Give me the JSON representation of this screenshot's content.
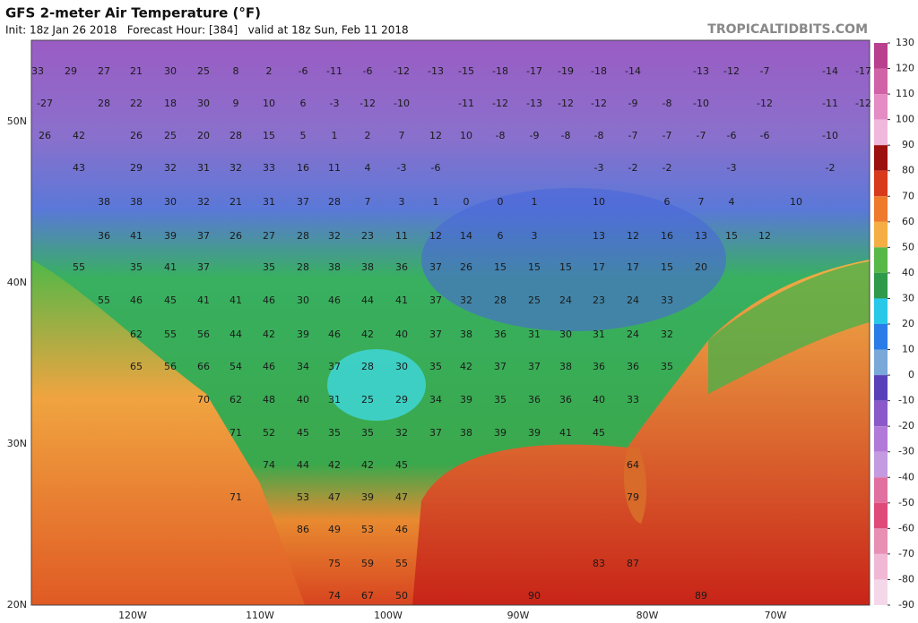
{
  "header": {
    "title": "GFS 2-meter Air Temperature (°F)",
    "subtitle": "Init: 18z Jan 26 2018   Forecast Hour: [384]   valid at 18z Sun, Feb 11 2018",
    "credit": "TROPICALTIDBITS.COM"
  },
  "map": {
    "longitude_labels": [
      "120W",
      "110W",
      "100W",
      "90W",
      "80W",
      "70W"
    ],
    "latitude_labels": [
      "50N",
      "40N",
      "30N",
      "20N"
    ],
    "station_rows": [
      [
        33,
        29,
        27,
        21,
        30,
        25,
        8,
        2,
        -6,
        -11,
        -6,
        -12,
        -13,
        -15,
        -18,
        -17,
        -19,
        -18,
        -14,
        -13,
        -12,
        -7,
        -14,
        -17
      ],
      [
        -27,
        28,
        22,
        18,
        30,
        9,
        10,
        6,
        -3,
        -12,
        -10,
        -11,
        -12,
        -13,
        -12,
        -12,
        -9,
        -8,
        -10,
        -12,
        -11,
        -12
      ],
      [
        26,
        42,
        26,
        25,
        20,
        28,
        15,
        5,
        1,
        2,
        7,
        12,
        10,
        -8,
        -9,
        -8,
        -8,
        -7,
        -7,
        -7,
        -6,
        -6,
        -10
      ],
      [
        43,
        29,
        32,
        31,
        32,
        33,
        16,
        11,
        4,
        -3,
        -6,
        -3,
        -2,
        -2,
        -3,
        -2
      ],
      [
        38,
        38,
        30,
        32,
        21,
        31,
        37,
        28,
        7,
        3,
        1,
        0,
        0,
        1,
        10,
        6,
        7,
        4,
        10
      ],
      [
        36,
        41,
        39,
        37,
        26,
        27,
        28,
        32,
        23,
        11,
        12,
        14,
        6,
        3,
        13,
        12,
        16,
        13,
        15,
        12
      ],
      [
        55,
        35,
        41,
        37,
        35,
        28,
        38,
        38,
        36,
        37,
        26,
        15,
        15,
        15,
        17,
        17,
        15,
        20
      ],
      [
        55,
        46,
        45,
        41,
        41,
        46,
        30,
        46,
        44,
        41,
        37,
        32,
        28,
        25,
        24,
        23,
        24,
        33
      ],
      [
        62,
        55,
        56,
        44,
        42,
        39,
        46,
        42,
        40,
        37,
        38,
        36,
        31,
        30,
        31,
        24,
        32
      ],
      [
        65,
        56,
        66,
        54,
        46,
        34,
        37,
        28,
        30,
        35,
        42,
        37,
        37,
        38,
        36,
        36,
        35
      ],
      [
        70,
        62,
        48,
        40,
        31,
        25,
        29,
        34,
        39,
        35,
        36,
        36,
        40,
        33
      ],
      [
        71,
        52,
        45,
        35,
        35,
        32,
        37,
        38,
        39,
        39,
        41,
        45
      ],
      [
        74,
        44,
        42,
        42,
        45,
        64
      ],
      [
        71,
        53,
        47,
        39,
        47,
        79
      ],
      [
        86,
        49,
        53,
        46
      ],
      [
        75,
        59,
        55,
        83,
        87
      ],
      [
        74,
        67,
        50,
        90,
        89
      ]
    ]
  },
  "colorbar": {
    "ticks": [
      130,
      120,
      110,
      100,
      90,
      80,
      70,
      60,
      50,
      40,
      30,
      20,
      10,
      0,
      -10,
      -20,
      -30,
      -40,
      -50,
      -60,
      -70,
      -80,
      -90
    ],
    "colors": [
      "#b8408e",
      "#d062a8",
      "#e48cc4",
      "#f0b8dc",
      "#9c1010",
      "#d83a1c",
      "#ee7a2c",
      "#f4ae44",
      "#58b848",
      "#2e9a4a",
      "#28c8e8",
      "#2a7ce8",
      "#7aa8d8",
      "#5a40b8",
      "#8a58c8",
      "#b27ad8",
      "#c49ae0",
      "#e070a0",
      "#e04a7a",
      "#e890b4",
      "#f0b8d4",
      "#f4d8ea"
    ]
  }
}
